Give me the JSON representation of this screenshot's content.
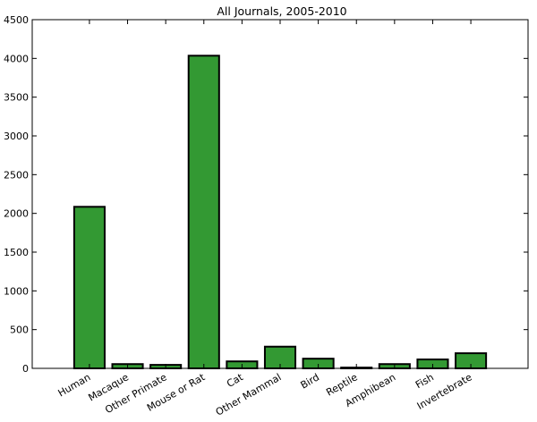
{
  "chart_data": {
    "type": "bar",
    "title": "All Journals, 2005-2010",
    "xlabel": "",
    "ylabel": "",
    "categories": [
      "Human",
      "Macaque",
      "Other Primate",
      "Mouse or Rat",
      "Cat",
      "Other Mammal",
      "Bird",
      "Reptile",
      "Amphibean",
      "Fish",
      "Invertebrate"
    ],
    "values": [
      2085,
      55,
      45,
      4035,
      90,
      280,
      125,
      10,
      55,
      115,
      195
    ],
    "ylim": [
      0,
      4500
    ],
    "yticks": [
      0,
      500,
      1000,
      1500,
      2000,
      2500,
      3000,
      3500,
      4000,
      4500
    ],
    "grid": false,
    "legend": "none",
    "colors": {
      "bar": "#339933",
      "edge": "#000000",
      "axes": "#000000"
    }
  }
}
